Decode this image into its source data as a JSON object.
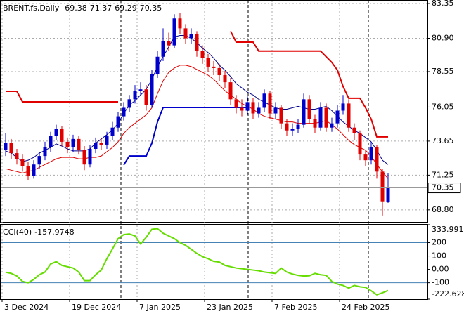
{
  "chart_data": [
    {
      "type": "candlestick",
      "title": "BRENT.fs,Daily",
      "categories": [
        "3 Dec 2024",
        null,
        null,
        null,
        null,
        null,
        null,
        null,
        null,
        null,
        null,
        null,
        "19 Dec 2024",
        null,
        null,
        null,
        null,
        null,
        null,
        null,
        null,
        null,
        null,
        null,
        "7 Jan 2025",
        null,
        null,
        null,
        null,
        null,
        null,
        null,
        null,
        null,
        null,
        null,
        "23 Jan 2025",
        null,
        null,
        null,
        null,
        null,
        null,
        null,
        null,
        null,
        null,
        null,
        "7 Feb 2025",
        null,
        null,
        null,
        null,
        null,
        null,
        null,
        null,
        null,
        null,
        null,
        "24 Feb 2025",
        null,
        null,
        null,
        null,
        null,
        null,
        null,
        null
      ],
      "open": [
        73.0,
        73.5,
        72.8,
        72.4,
        71.9,
        71.2,
        72.0,
        72.6,
        73.2,
        74.0,
        74.5,
        73.6,
        73.2,
        73.8,
        73.0,
        72.0,
        73.1,
        73.5,
        73.4,
        74.0,
        74.6,
        75.4,
        76.0,
        76.6,
        77.2,
        77.3,
        76.2,
        78.4,
        79.6,
        80.7,
        80.4,
        82.3,
        81.6,
        80.9,
        81.2,
        80.0,
        79.5,
        78.9,
        78.8,
        78.3,
        77.8,
        76.6,
        76.0,
        75.8,
        76.4,
        75.6,
        76.0,
        77.0,
        75.6,
        76.0,
        74.9,
        74.4,
        74.5,
        74.8,
        76.6,
        75.2,
        74.6,
        76.0,
        74.6,
        74.9,
        75.8,
        76.3,
        74.6,
        74.2,
        72.7,
        72.3,
        73.2,
        71.5,
        69.38
      ],
      "high": [
        74.2,
        73.8,
        73.1,
        72.7,
        72.2,
        72.3,
        72.9,
        73.6,
        74.3,
        74.8,
        74.7,
        73.9,
        74.1,
        74.0,
        73.3,
        73.4,
        73.9,
        73.9,
        74.3,
        75.0,
        75.7,
        76.4,
        76.9,
        77.6,
        77.8,
        77.6,
        78.7,
        80.0,
        81.6,
        81.3,
        82.6,
        82.7,
        81.9,
        81.6,
        81.4,
        80.4,
        79.8,
        79.3,
        79.1,
        78.6,
        78.1,
        76.9,
        76.6,
        76.8,
        76.7,
        76.4,
        77.3,
        77.2,
        76.4,
        76.2,
        75.2,
        74.9,
        75.2,
        77.0,
        76.9,
        75.5,
        76.4,
        76.3,
        75.3,
        76.2,
        76.9,
        76.6,
        74.9,
        74.4,
        73.0,
        73.6,
        73.4,
        71.7,
        71.37
      ],
      "low": [
        72.6,
        72.4,
        72.0,
        71.5,
        70.9,
        71.0,
        71.7,
        72.3,
        72.9,
        73.7,
        73.3,
        72.8,
        72.9,
        72.7,
        71.6,
        71.8,
        72.8,
        73.0,
        73.1,
        73.7,
        74.3,
        75.1,
        75.7,
        76.3,
        76.9,
        75.8,
        76.0,
        78.1,
        79.3,
        80.0,
        80.2,
        81.2,
        80.5,
        80.5,
        79.6,
        79.1,
        78.5,
        78.3,
        77.9,
        77.4,
        76.2,
        75.6,
        75.4,
        75.5,
        75.2,
        75.3,
        75.7,
        75.2,
        75.2,
        74.5,
        74.0,
        74.0,
        74.2,
        74.6,
        74.9,
        74.2,
        74.4,
        74.3,
        74.3,
        74.6,
        75.5,
        74.3,
        73.7,
        72.3,
        71.9,
        72.0,
        71.0,
        68.4,
        69.29
      ],
      "close": [
        73.5,
        72.8,
        72.4,
        71.9,
        71.2,
        72.0,
        72.6,
        73.2,
        74.0,
        74.5,
        73.6,
        73.2,
        73.8,
        73.0,
        72.0,
        73.1,
        73.5,
        73.4,
        74.0,
        74.6,
        75.4,
        76.0,
        76.6,
        77.2,
        77.3,
        76.2,
        78.4,
        79.6,
        80.7,
        80.4,
        82.3,
        81.6,
        80.9,
        81.2,
        80.0,
        79.5,
        78.9,
        78.8,
        78.3,
        77.8,
        76.6,
        76.0,
        75.8,
        76.4,
        75.6,
        76.0,
        77.0,
        75.6,
        76.0,
        74.9,
        74.4,
        74.5,
        74.8,
        76.6,
        75.2,
        74.6,
        76.0,
        74.6,
        74.9,
        75.8,
        76.3,
        74.6,
        74.2,
        72.7,
        72.3,
        73.2,
        71.5,
        69.4,
        70.35
      ],
      "up_color": "#0000cd",
      "down_color": "#e00000",
      "series": [
        {
          "color": "#00008b",
          "line_width": 1,
          "values": [
            72.96,
            72.8,
            72.5,
            72.2,
            72.3,
            72.5,
            72.8,
            73.0,
            73.2,
            73.45,
            73.3,
            73.1,
            72.96,
            72.96,
            72.96,
            73.1,
            73.5,
            73.8,
            74.1,
            74.44,
            74.9,
            75.6,
            76.2,
            76.5,
            76.9,
            77.3,
            78.0,
            78.9,
            79.6,
            80.3,
            81.0,
            81.1,
            81.1,
            80.9,
            80.6,
            80.2,
            79.9,
            79.5,
            79.0,
            78.65,
            78.2,
            77.7,
            77.4,
            77.1,
            76.9,
            76.6,
            76.4,
            76.2,
            76.0,
            75.9,
            75.9,
            76.0,
            76.1,
            76.0,
            75.9,
            75.9,
            76.0,
            76.1,
            75.8,
            75.4,
            75.0,
            74.7,
            74.4,
            74.2,
            73.9,
            73.6,
            73.0,
            72.3,
            72.0
          ]
        },
        {
          "color": "#e00000",
          "line_width": 1,
          "values": [
            71.7,
            71.6,
            71.5,
            71.4,
            71.5,
            71.6,
            71.8,
            72.0,
            72.2,
            72.4,
            72.5,
            72.5,
            72.5,
            72.4,
            72.4,
            72.5,
            72.5,
            72.6,
            72.9,
            73.2,
            73.6,
            74.2,
            74.6,
            74.9,
            75.2,
            75.5,
            76.0,
            77.0,
            77.9,
            78.5,
            78.8,
            79.0,
            79.0,
            78.9,
            78.7,
            78.5,
            78.3,
            78.0,
            77.6,
            77.2,
            76.9,
            76.6,
            76.3,
            76.1,
            75.9,
            75.6,
            75.4,
            75.3,
            75.2,
            75.1,
            75.0,
            75.0,
            74.9,
            74.9,
            74.9,
            74.9,
            75.0,
            75.1,
            74.8,
            74.5,
            74.1,
            73.7,
            73.4,
            73.2,
            73.0,
            72.6,
            72.0,
            71.5,
            71.0
          ]
        },
        {
          "color": "#e00000",
          "line_width": 2,
          "values": [
            77.16,
            77.16,
            77.16,
            76.42,
            76.42,
            76.42,
            76.42,
            76.42,
            76.42,
            76.42,
            76.42,
            76.42,
            76.42,
            76.42,
            76.42,
            76.42,
            76.42,
            76.42,
            76.42,
            76.42,
            76.42,
            null,
            null,
            null,
            null,
            null,
            null,
            null,
            null,
            null,
            null,
            null,
            null,
            null,
            null,
            null,
            null,
            null,
            null,
            null,
            81.4,
            80.63,
            80.63,
            80.63,
            80.63,
            80.0,
            80.0,
            80.0,
            80.0,
            80.0,
            80.0,
            80.0,
            80.0,
            80.0,
            80.0,
            80.0,
            80.0,
            79.6,
            79.2,
            78.65,
            77.5,
            76.67,
            76.67,
            76.67,
            76.0,
            75.2,
            73.95,
            73.95,
            73.95
          ]
        },
        {
          "color": "#0000cd",
          "line_width": 2,
          "values": [
            null,
            null,
            null,
            null,
            null,
            null,
            null,
            null,
            null,
            null,
            null,
            null,
            null,
            null,
            null,
            null,
            null,
            null,
            null,
            null,
            null,
            71.97,
            72.6,
            72.6,
            72.6,
            72.6,
            73.5,
            75.0,
            76.02,
            76.02,
            76.02,
            76.02,
            76.02,
            76.02,
            76.02,
            76.02,
            76.02,
            76.02,
            76.02,
            76.02,
            76.02,
            76.02,
            76.02,
            76.02,
            null,
            null,
            null,
            null,
            null,
            null,
            null,
            null,
            null,
            null,
            null,
            null,
            null,
            null,
            null,
            null,
            null,
            null,
            null,
            null,
            null,
            null,
            null,
            null,
            null
          ]
        }
      ],
      "ylim": [
        67.95,
        83.6
      ],
      "yticks": [
        83.35,
        {
          "value": 80.9,
          "label": "80.90"
        },
        78.55,
        76.05,
        73.65,
        71.25,
        {
          "value": 68.8,
          "label": "68.80"
        }
      ],
      "grid": true
    },
    {
      "type": "line",
      "title": "CCI(40)",
      "color": "#66dd00",
      "values": [
        -21,
        -30,
        -50,
        -90,
        -100,
        -75,
        -40,
        -20,
        40,
        58,
        30,
        20,
        10,
        -20,
        -84,
        -84,
        -40,
        -5,
        80,
        153,
        230,
        260,
        265,
        250,
        190,
        240,
        300,
        305,
        270,
        250,
        230,
        200,
        180,
        150,
        120,
        95,
        80,
        60,
        55,
        30,
        20,
        10,
        5,
        0,
        -5,
        -10,
        -20,
        -25,
        -30,
        10,
        -20,
        -35,
        -45,
        -50,
        -48,
        -30,
        -40,
        -45,
        -90,
        -110,
        -120,
        -140,
        -120,
        -130,
        -135,
        -160,
        -190,
        -175,
        -157.9748
      ],
      "ylim": [
        -222.628,
        333.991
      ],
      "yticks": [
        333.991,
        200,
        100,
        {
          "value": 0,
          "label": "0.00"
        },
        -100,
        -222.628
      ],
      "levels": [
        200,
        100,
        -100
      ]
    }
  ]
}
